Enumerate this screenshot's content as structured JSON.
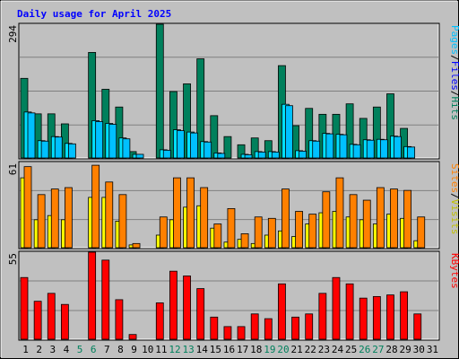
{
  "chart_data": {
    "type": "bar",
    "title": "Daily usage for April 2025",
    "colors": {
      "background": "#c0c0c0",
      "frame": "#a0a0a0",
      "title": "#0000ff",
      "hits": "#00805c",
      "files": "#00e0ff",
      "pages": "#00c0ff",
      "visits": "#ffff00",
      "sites": "#ff8000",
      "kbytes": "#ff0000",
      "weekend_label": "#00805c",
      "weekday_label": "#000000",
      "grid": "#808080"
    },
    "categories": [
      "1",
      "2",
      "3",
      "4",
      "5",
      "6",
      "7",
      "8",
      "9",
      "10",
      "11",
      "12",
      "13",
      "14",
      "15",
      "16",
      "17",
      "18",
      "19",
      "20",
      "21",
      "22",
      "23",
      "24",
      "25",
      "26",
      "27",
      "28",
      "29",
      "30",
      "31"
    ],
    "weekend_days": [
      "5",
      "6",
      "12",
      "13",
      "19",
      "20",
      "26",
      "27"
    ],
    "panels": [
      {
        "name": "hits-files-pages",
        "ymax_label": "294",
        "ymax": 294,
        "side_labels": [
          {
            "text": "Hits",
            "color": "#00805c"
          },
          {
            "text": "/",
            "color": "#000000"
          },
          {
            "text": "Files",
            "color": "#0000ff"
          },
          {
            "text": "/",
            "color": "#000000"
          },
          {
            "text": "Pages",
            "color": "#00c0ff"
          }
        ],
        "series": [
          {
            "name": "Hits",
            "color": "#00805c",
            "values": [
              175,
              97,
              97,
              75,
              0,
              232,
              151,
              112,
              14,
              0,
              294,
              146,
              163,
              218,
              93,
              47,
              29,
              44,
              38,
              203,
              71,
              109,
              96,
              96,
              119,
              87,
              112,
              141,
              65,
              0
            ]
          },
          {
            "name": "Files",
            "color": "#00e0ff",
            "values": [
              101,
              38,
              47,
              32,
              0,
              82,
              76,
              44,
              8,
              0,
              18,
              62,
              57,
              36,
              11,
              0,
              8,
              14,
              14,
              118,
              16,
              38,
              54,
              52,
              30,
              40,
              41,
              48,
              25,
              0
            ]
          },
          {
            "name": "Pages",
            "color": "#00c0ff",
            "values": [
              99,
              37,
              46,
              31,
              0,
              80,
              74,
              42,
              8,
              0,
              17,
              60,
              55,
              35,
              10,
              0,
              7,
              13,
              13,
              115,
              15,
              37,
              53,
              51,
              29,
              39,
              40,
              47,
              24,
              0
            ]
          }
        ]
      },
      {
        "name": "visits-sites",
        "ymax_label": "61",
        "ymax": 61,
        "side_labels": [
          {
            "text": "Visits",
            "color": "#c0c000"
          },
          {
            "text": "/",
            "color": "#000000"
          },
          {
            "text": "Sites",
            "color": "#ff8000"
          }
        ],
        "series": [
          {
            "name": "Visits",
            "color": "#ffff00",
            "values": [
              50,
              20,
              23,
              20,
              0,
              36,
              36,
              19,
              2,
              0,
              9,
              20,
              29,
              30,
              14,
              4,
              6,
              3,
              9,
              12,
              8,
              17,
              25,
              26,
              22,
              20,
              17,
              24,
              21,
              5
            ],
            "min_height_note": ""
          },
          {
            "name": "Sites",
            "color": "#ff8000",
            "values": [
              58,
              38,
              42,
              43,
              0,
              59,
              47,
              38,
              3,
              0,
              22,
              50,
              50,
              43,
              17,
              28,
              10,
              22,
              21,
              42,
              26,
              24,
              40,
              50,
              38,
              34,
              43,
              42,
              41,
              22
            ]
          }
        ]
      },
      {
        "name": "kbytes",
        "ymax_label": "55",
        "ymax": 55,
        "side_labels": [
          {
            "text": "KBytes",
            "color": "#ff0000"
          }
        ],
        "series": [
          {
            "name": "KBytes",
            "color": "#ff0000",
            "values": [
              39,
              24,
              29,
              22,
              0,
              55,
              50,
              25,
              3,
              0,
              23,
              43,
              40,
              32,
              14,
              8,
              8,
              16,
              13,
              35,
              14,
              16,
              29,
              39,
              35,
              26,
              27,
              28,
              30,
              16
            ]
          }
        ]
      }
    ]
  }
}
